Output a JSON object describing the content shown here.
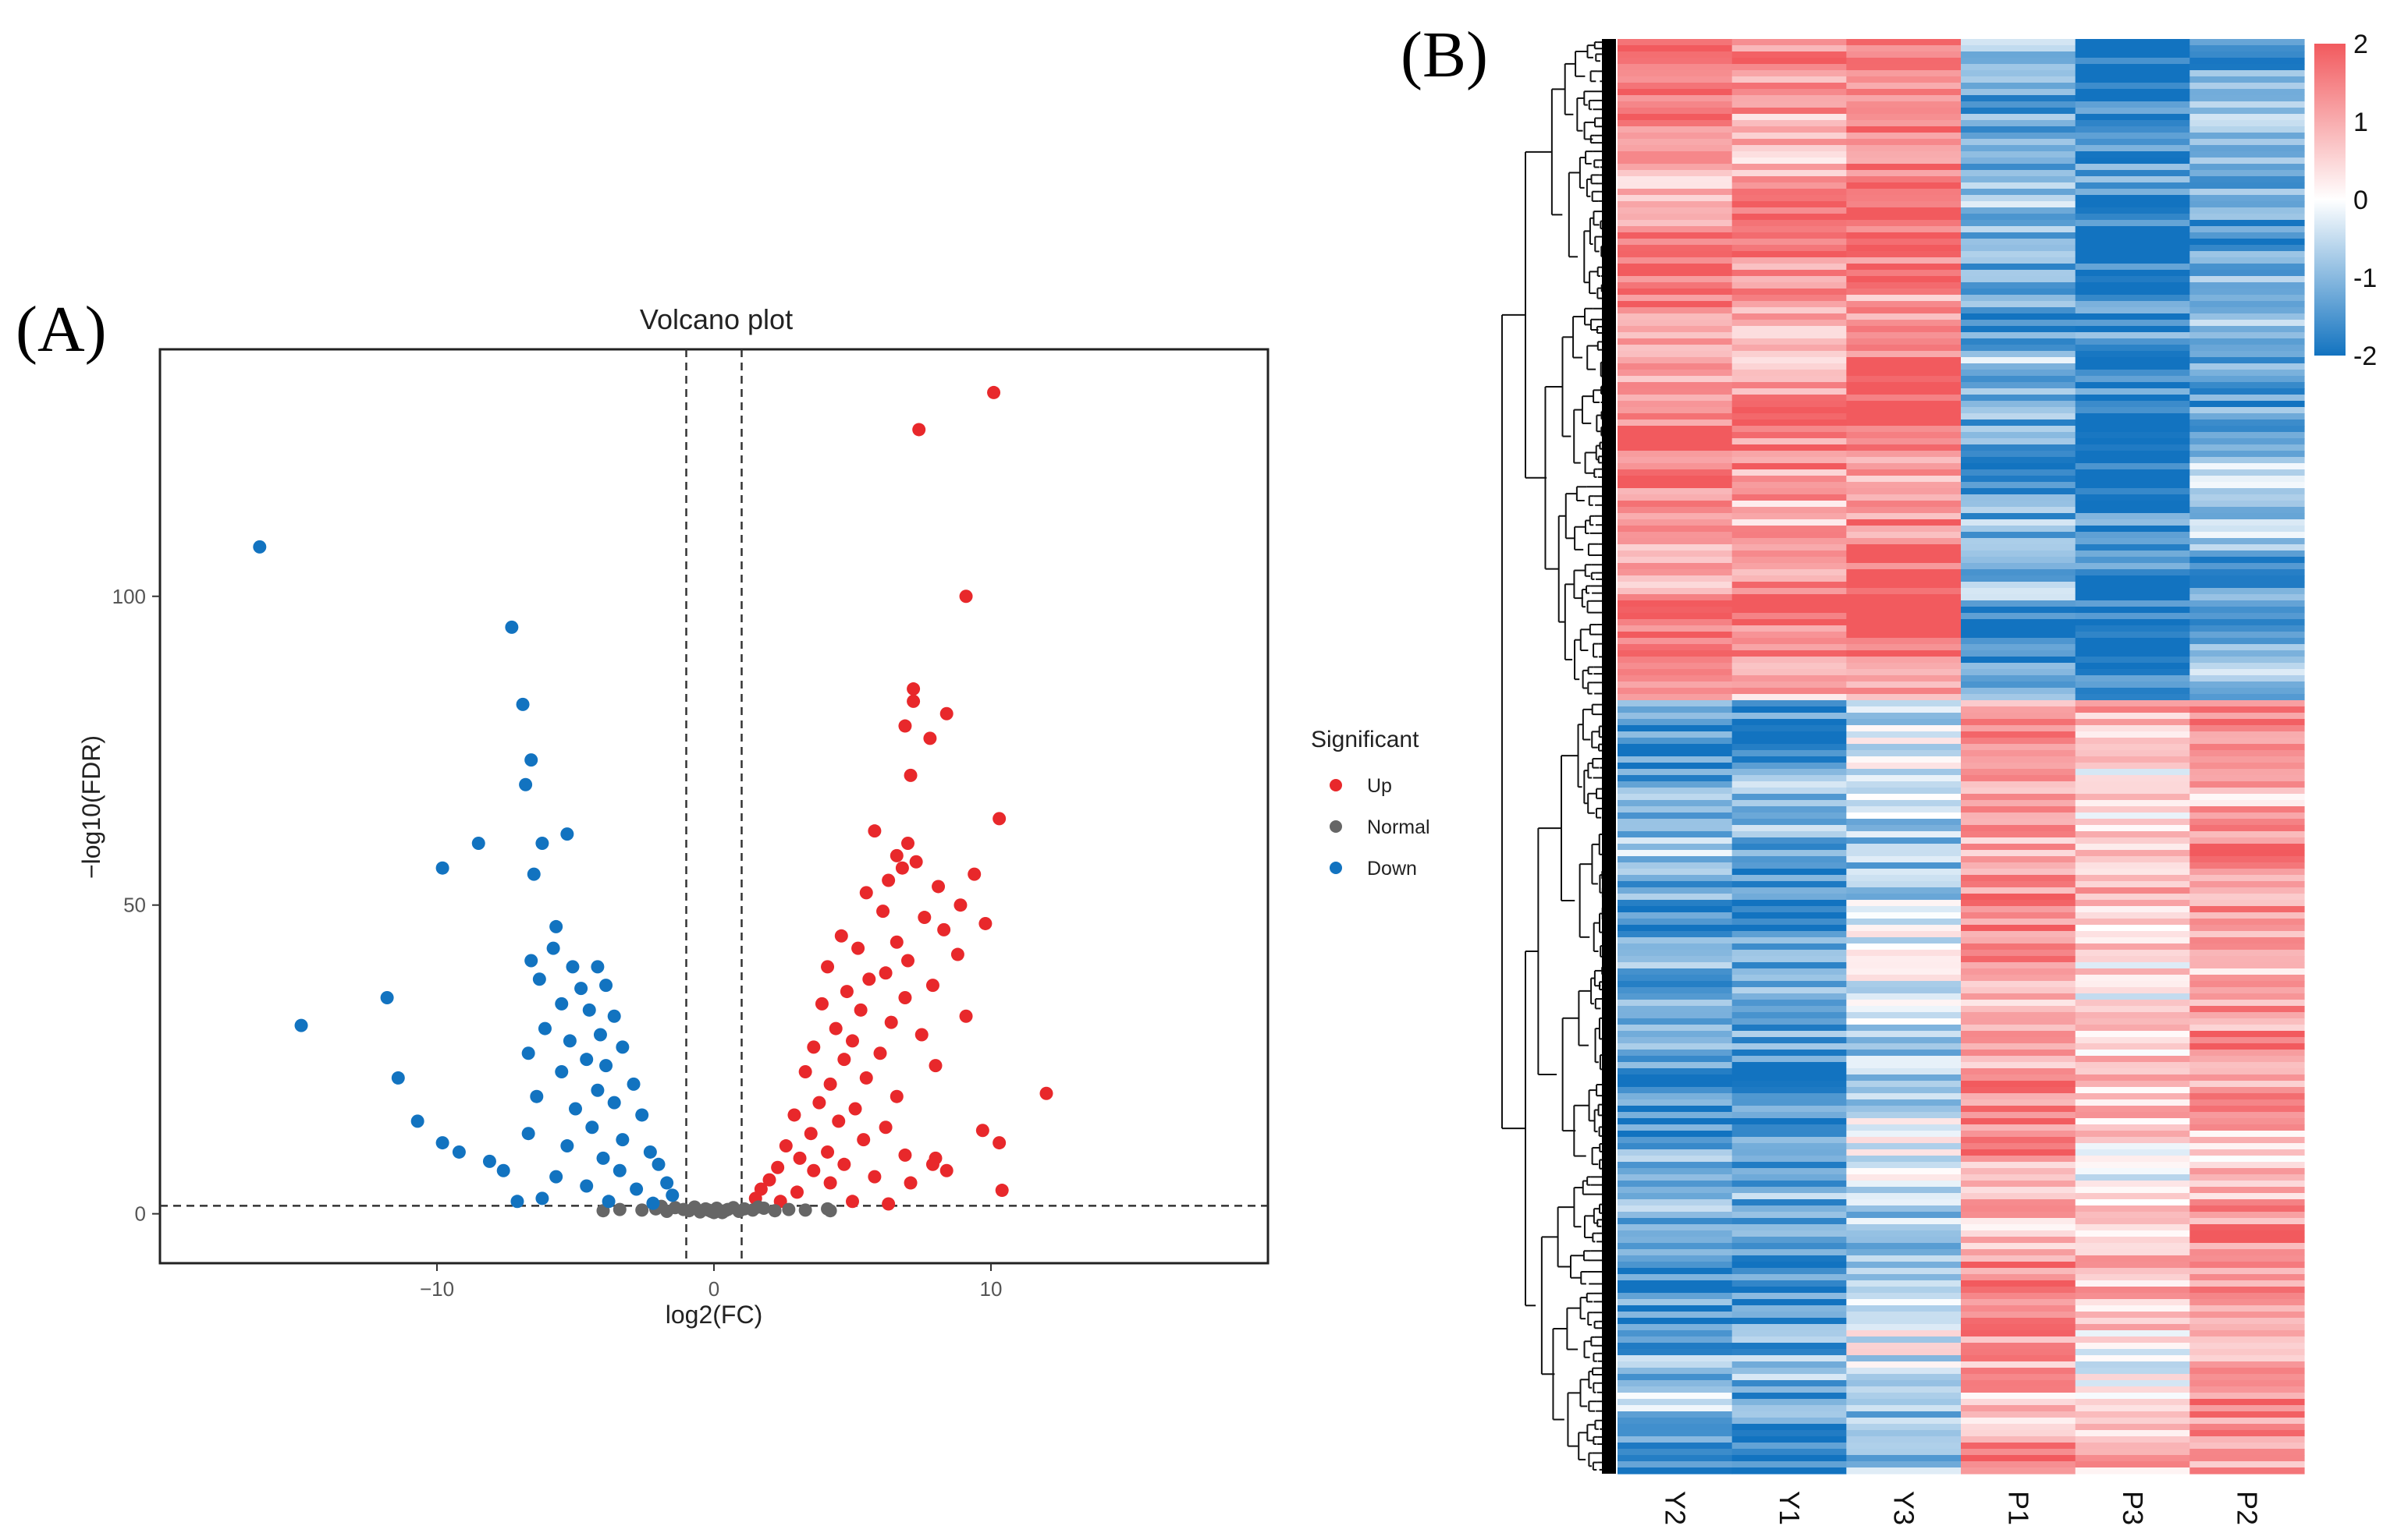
{
  "panels": {
    "a_label": "(A)",
    "b_label": "(B)"
  },
  "chart_data": [
    {
      "type": "scatter",
      "title": "Volcano plot",
      "xlabel": "log2(FC)",
      "ylabel": "−log10(FDR)",
      "xlim": [
        -20,
        20
      ],
      "ylim": [
        -8,
        140
      ],
      "xticks": [
        -10,
        0,
        10
      ],
      "xtick_labels": [
        "−10",
        "0",
        "10"
      ],
      "yticks": [
        0,
        50,
        100
      ],
      "ytick_labels": [
        "0",
        "50",
        "100"
      ],
      "thresholds": {
        "log2fc": [
          -1,
          1
        ],
        "neg_log10_fdr": 1.3
      },
      "grid": false,
      "legend": {
        "title": "Significant",
        "position": "right",
        "entries": [
          {
            "name": "Up",
            "color": "#e8282b"
          },
          {
            "name": "Normal",
            "color": "#666666"
          },
          {
            "name": "Down",
            "color": "#1273c0"
          }
        ]
      },
      "series": [
        {
          "name": "Up",
          "color": "#e8282b",
          "points": [
            [
              10.1,
              133
            ],
            [
              7.4,
              127
            ],
            [
              9.1,
              100
            ],
            [
              7.2,
              85
            ],
            [
              7.2,
              83
            ],
            [
              8.4,
              81
            ],
            [
              6.9,
              79
            ],
            [
              7.8,
              77
            ],
            [
              7.1,
              71
            ],
            [
              10.3,
              64
            ],
            [
              5.8,
              62
            ],
            [
              7.0,
              60
            ],
            [
              6.6,
              58
            ],
            [
              7.3,
              57
            ],
            [
              6.8,
              56
            ],
            [
              9.4,
              55
            ],
            [
              6.3,
              54
            ],
            [
              8.1,
              53
            ],
            [
              5.5,
              52
            ],
            [
              8.9,
              50
            ],
            [
              6.1,
              49
            ],
            [
              7.6,
              48
            ],
            [
              9.8,
              47
            ],
            [
              8.3,
              46
            ],
            [
              4.6,
              45
            ],
            [
              6.6,
              44
            ],
            [
              5.2,
              43
            ],
            [
              8.8,
              42
            ],
            [
              7.0,
              41
            ],
            [
              4.1,
              40
            ],
            [
              6.2,
              39
            ],
            [
              5.6,
              38
            ],
            [
              7.9,
              37
            ],
            [
              4.8,
              36
            ],
            [
              6.9,
              35
            ],
            [
              3.9,
              34
            ],
            [
              5.3,
              33
            ],
            [
              9.1,
              32
            ],
            [
              6.4,
              31
            ],
            [
              4.4,
              30
            ],
            [
              7.5,
              29
            ],
            [
              5.0,
              28
            ],
            [
              3.6,
              27
            ],
            [
              6.0,
              26
            ],
            [
              4.7,
              25
            ],
            [
              8.0,
              24
            ],
            [
              3.3,
              23
            ],
            [
              5.5,
              22
            ],
            [
              4.2,
              21
            ],
            [
              12.0,
              19.5
            ],
            [
              6.6,
              19
            ],
            [
              3.8,
              18
            ],
            [
              5.1,
              17
            ],
            [
              2.9,
              16
            ],
            [
              4.5,
              15
            ],
            [
              6.2,
              14
            ],
            [
              9.7,
              13.5
            ],
            [
              3.5,
              13
            ],
            [
              5.4,
              12
            ],
            [
              10.3,
              11.5
            ],
            [
              2.6,
              11
            ],
            [
              4.1,
              10
            ],
            [
              6.9,
              9.5
            ],
            [
              3.1,
              9
            ],
            [
              8.0,
              9
            ],
            [
              4.7,
              8
            ],
            [
              7.9,
              8
            ],
            [
              2.3,
              7.5
            ],
            [
              3.6,
              7
            ],
            [
              8.4,
              7
            ],
            [
              5.8,
              6
            ],
            [
              2.0,
              5.5
            ],
            [
              4.2,
              5
            ],
            [
              7.1,
              5
            ],
            [
              1.7,
              4
            ],
            [
              10.4,
              3.8
            ],
            [
              3.0,
              3.5
            ],
            [
              1.5,
              2.5
            ],
            [
              5.0,
              2
            ],
            [
              2.4,
              2
            ],
            [
              6.3,
              1.6
            ]
          ]
        },
        {
          "name": "Normal",
          "color": "#666666",
          "points": [
            [
              -2.6,
              0.6
            ],
            [
              -2.1,
              0.8
            ],
            [
              -1.7,
              0.4
            ],
            [
              -1.4,
              1.0
            ],
            [
              -1.1,
              0.7
            ],
            [
              -0.9,
              0.5
            ],
            [
              -0.7,
              1.1
            ],
            [
              -0.5,
              0.3
            ],
            [
              -0.3,
              0.8
            ],
            [
              -0.1,
              0.4
            ],
            [
              0.1,
              0.9
            ],
            [
              0.3,
              0.2
            ],
            [
              0.5,
              0.7
            ],
            [
              0.7,
              1.0
            ],
            [
              0.9,
              0.4
            ],
            [
              1.1,
              0.8
            ],
            [
              1.4,
              0.6
            ],
            [
              1.8,
              0.9
            ],
            [
              2.2,
              0.5
            ],
            [
              2.7,
              0.7
            ],
            [
              3.3,
              0.6
            ],
            [
              4.1,
              0.8
            ],
            [
              4.2,
              0.5
            ],
            [
              -3.4,
              0.7
            ],
            [
              -4.0,
              0.5
            ],
            [
              -1.9,
              1.2
            ],
            [
              1.6,
              1.1
            ],
            [
              0.0,
              0.2
            ],
            [
              -0.2,
              0.6
            ],
            [
              0.4,
              0.5
            ]
          ]
        },
        {
          "name": "Down",
          "color": "#1273c0",
          "points": [
            [
              -16.4,
              108
            ],
            [
              -7.3,
              95
            ],
            [
              -6.9,
              82.5
            ],
            [
              -6.6,
              73.5
            ],
            [
              -6.8,
              69.5
            ],
            [
              -5.3,
              61.5
            ],
            [
              -6.2,
              60
            ],
            [
              -8.5,
              60
            ],
            [
              -9.8,
              56
            ],
            [
              -6.5,
              55
            ],
            [
              -5.7,
              46.5
            ],
            [
              -5.8,
              43
            ],
            [
              -6.6,
              41
            ],
            [
              -5.1,
              40
            ],
            [
              -4.2,
              40
            ],
            [
              -6.3,
              38
            ],
            [
              -3.9,
              37
            ],
            [
              -4.8,
              36.5
            ],
            [
              -11.8,
              35
            ],
            [
              -5.5,
              34
            ],
            [
              -4.5,
              33
            ],
            [
              -3.6,
              32
            ],
            [
              -14.9,
              30.5
            ],
            [
              -6.1,
              30
            ],
            [
              -4.1,
              29
            ],
            [
              -5.2,
              28
            ],
            [
              -3.3,
              27
            ],
            [
              -6.7,
              26
            ],
            [
              -4.6,
              25
            ],
            [
              -3.9,
              24
            ],
            [
              -5.5,
              23
            ],
            [
              -11.4,
              22
            ],
            [
              -2.9,
              21
            ],
            [
              -4.2,
              20
            ],
            [
              -6.4,
              19
            ],
            [
              -3.6,
              18
            ],
            [
              -5.0,
              17
            ],
            [
              -2.6,
              16
            ],
            [
              -10.7,
              15
            ],
            [
              -4.4,
              14
            ],
            [
              -6.7,
              13
            ],
            [
              -3.3,
              12
            ],
            [
              -9.8,
              11.5
            ],
            [
              -5.3,
              11
            ],
            [
              -2.3,
              10
            ],
            [
              -9.2,
              10
            ],
            [
              -4.0,
              9
            ],
            [
              -8.1,
              8.5
            ],
            [
              -2.0,
              8
            ],
            [
              -3.4,
              7
            ],
            [
              -7.6,
              7
            ],
            [
              -5.7,
              6
            ],
            [
              -1.7,
              5
            ],
            [
              -4.6,
              4.5
            ],
            [
              -2.8,
              4
            ],
            [
              -1.5,
              3
            ],
            [
              -6.2,
              2.5
            ],
            [
              -3.8,
              2
            ],
            [
              -2.2,
              1.7
            ],
            [
              -7.1,
              2
            ]
          ]
        }
      ]
    },
    {
      "type": "heatmap",
      "columns": [
        "Y2",
        "Y1",
        "Y3",
        "P1",
        "P3",
        "P2"
      ],
      "cluster_split_fraction": 0.462,
      "block_pattern": {
        "top": [
          1.4,
          1.2,
          1.6,
          -1.2,
          -1.8,
          -1.0
        ],
        "bottom": [
          -1.2,
          -1.4,
          -0.5,
          1.2,
          0.5,
          1.1
        ]
      },
      "colorbar": {
        "ticks": [
          2,
          1,
          0,
          -1,
          -2
        ],
        "tick_labels": [
          "2",
          "1",
          "0",
          "-1",
          "-2"
        ],
        "low_color": "#1273c0",
        "mid_color": "#ffffff",
        "high_color": "#f25a5e"
      }
    }
  ]
}
